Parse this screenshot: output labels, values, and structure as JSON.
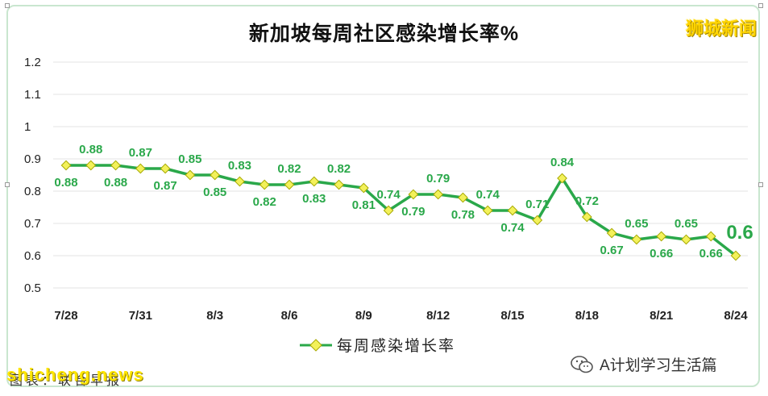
{
  "title": "新加坡每周社区感染增长率%",
  "brand": "狮城新闻",
  "source_note": "图表：联合早报",
  "watermark": "shicheng.news",
  "wechat_label": "A计划学习生活篇",
  "colors": {
    "line": "#2aa84a",
    "marker_fill": "#f3f15a",
    "marker_stroke": "#a6a800",
    "label": "#2aa84a",
    "grid": "#e3e3e3",
    "axis_text": "#222222",
    "frame": "#c9e6cf",
    "brand": "#ffd400"
  },
  "chart_data": {
    "type": "line",
    "title": "新加坡每周社区感染增长率%",
    "xlabel": "",
    "ylabel": "",
    "ylim": [
      0.5,
      1.2
    ],
    "yticks": [
      0.5,
      0.6,
      0.7,
      0.8,
      0.9,
      1,
      1.1,
      1.2
    ],
    "ytick_labels": [
      "0.5",
      "0.6",
      "0.7",
      "0.8",
      "0.9",
      "1",
      "1.1",
      "1.2"
    ],
    "grid": true,
    "legend_position": "bottom",
    "x": [
      "7/28",
      "7/29",
      "7/30",
      "7/31",
      "8/1",
      "8/2",
      "8/3",
      "8/4",
      "8/5",
      "8/6",
      "8/7",
      "8/8",
      "8/9",
      "8/10",
      "8/11",
      "8/12",
      "8/13",
      "8/14",
      "8/15",
      "8/16",
      "8/17",
      "8/18",
      "8/19",
      "8/20",
      "8/21",
      "8/22",
      "8/23",
      "8/24"
    ],
    "xtick_labels": [
      "7/28",
      "7/31",
      "8/3",
      "8/6",
      "8/9",
      "8/12",
      "8/15",
      "8/18",
      "8/21",
      "8/24"
    ],
    "series": [
      {
        "name": "每周感染增长率",
        "values": [
          0.88,
          0.88,
          0.88,
          0.87,
          0.87,
          0.85,
          0.85,
          0.83,
          0.82,
          0.82,
          0.83,
          0.82,
          0.81,
          0.74,
          0.79,
          0.79,
          0.78,
          0.74,
          0.74,
          0.71,
          0.84,
          0.72,
          0.67,
          0.65,
          0.66,
          0.65,
          0.66,
          0.6
        ]
      }
    ],
    "data_labels": [
      "0.88",
      "0.88",
      "0.88",
      "0.87",
      "0.87",
      "0.85",
      "0.85",
      "0.83",
      "0.82",
      "0.82",
      "0.83",
      "0.82",
      "0.81",
      "0.74",
      "0.79",
      "0.79",
      "0.78",
      "0.74",
      "0.74",
      "0.71",
      "0.84",
      "0.72",
      "0.67",
      "0.65",
      "0.66",
      "0.65",
      "0.66",
      "0.6"
    ],
    "label_side": [
      "below",
      "above",
      "below",
      "above",
      "below",
      "above",
      "below",
      "above",
      "below",
      "above",
      "below",
      "above",
      "below",
      "above",
      "below",
      "above",
      "below",
      "above",
      "below",
      "above",
      "above",
      "above",
      "below",
      "above",
      "below",
      "above",
      "below",
      "above"
    ],
    "highlight_last": true
  }
}
